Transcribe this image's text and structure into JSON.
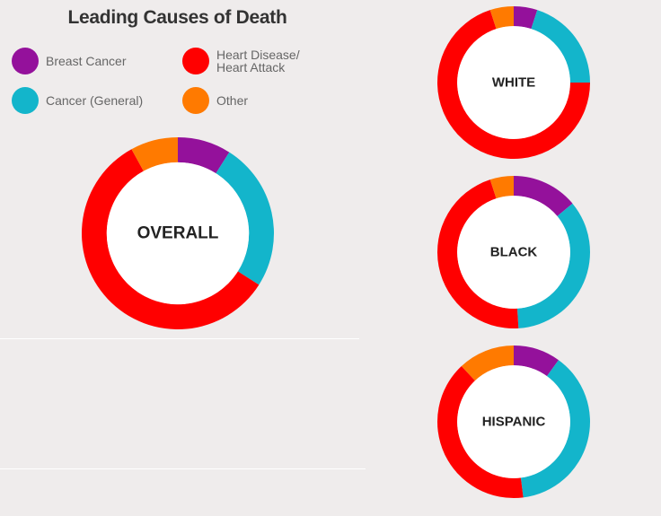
{
  "title": "Leading Causes of Death",
  "colors": {
    "breast": "#94119b",
    "cancer": "#13b5cb",
    "heart": "#ff0000",
    "other": "#ff7a00",
    "center": "#ffffff"
  },
  "legend": [
    {
      "key": "breast",
      "label": "Breast Cancer"
    },
    {
      "key": "heart",
      "label": "Heart Disease/\nHeart Attack"
    },
    {
      "key": "cancer",
      "label": "Cancer (General)"
    },
    {
      "key": "other",
      "label": "Other"
    }
  ],
  "chart_data": [
    {
      "type": "pie",
      "label": "OVERALL",
      "categories": [
        "Breast Cancer",
        "Cancer (General)",
        "Heart Disease/Heart Attack",
        "Other"
      ],
      "values": [
        9,
        25,
        58,
        8
      ]
    },
    {
      "type": "pie",
      "label": "WHITE",
      "categories": [
        "Breast Cancer",
        "Cancer (General)",
        "Heart Disease/Heart Attack",
        "Other"
      ],
      "values": [
        5,
        20,
        70,
        5
      ]
    },
    {
      "type": "pie",
      "label": "BLACK",
      "categories": [
        "Breast Cancer",
        "Cancer (General)",
        "Heart Disease/Heart Attack",
        "Other"
      ],
      "values": [
        14,
        35,
        46,
        5
      ]
    },
    {
      "type": "pie",
      "label": "HISPANIC",
      "categories": [
        "Breast Cancer",
        "Cancer (General)",
        "Heart Disease/Heart Attack",
        "Other"
      ],
      "values": [
        10,
        38,
        40,
        12
      ]
    }
  ]
}
